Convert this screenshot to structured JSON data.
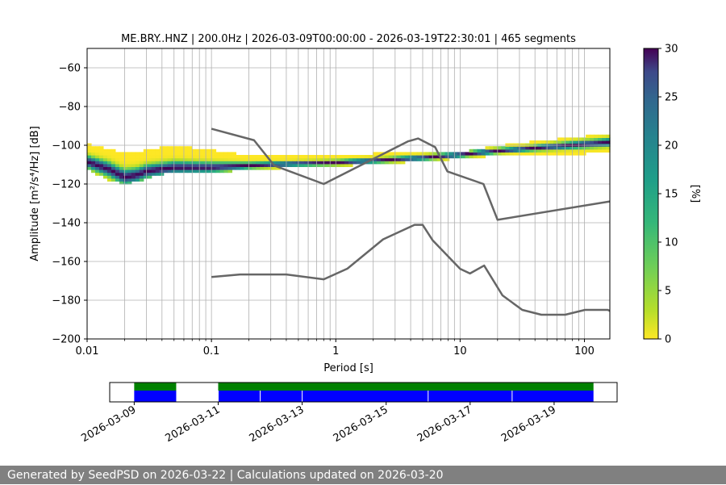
{
  "chart_data": {
    "type": "heatmap",
    "title": "ME.BRY..HNZ | 200.0Hz | 2026-03-09T00:00:00 - 2026-03-19T22:30:01 | 465 segments",
    "xlabel": "Period [s]",
    "ylabel": "Amplitude [m²/s⁴/Hz] [dB]",
    "x_scale": "log",
    "xlim": [
      0.01,
      160
    ],
    "ylim": [
      -200,
      -50
    ],
    "xticks": [
      0.01,
      0.1,
      1,
      10,
      100
    ],
    "xtick_labels": [
      "0.01",
      "0.1",
      "1",
      "10",
      "100"
    ],
    "yticks": [
      -200,
      -180,
      -160,
      -140,
      -120,
      -100,
      -80,
      -60
    ],
    "ytick_labels": [
      "−200",
      "−180",
      "−160",
      "−140",
      "−120",
      "−100",
      "−80",
      "−60"
    ],
    "grid": true,
    "colorbar": {
      "label": "[%]",
      "range": [
        0,
        30
      ],
      "ticks": [
        0,
        5,
        10,
        15,
        20,
        25,
        30
      ],
      "tick_labels": [
        "0",
        "5",
        "10",
        "15",
        "20",
        "25",
        "30"
      ],
      "colormap": "viridis_r"
    },
    "high_noise_model": {
      "name": "NHNM",
      "period": [
        0.1,
        0.22,
        0.32,
        0.8,
        3.8,
        4.6,
        6.3,
        7.9,
        15.4,
        20,
        160
      ],
      "db": [
        -91.5,
        -97.4,
        -110.5,
        -120,
        -98,
        -96.5,
        -101,
        -113.5,
        -120,
        -138.5,
        -129
      ]
    },
    "low_noise_model": {
      "name": "NLNM",
      "period": [
        0.1,
        0.17,
        0.4,
        0.8,
        1.24,
        2.4,
        4.3,
        5,
        6,
        10,
        12,
        15.6,
        21.9,
        31.6,
        45,
        70,
        101,
        154,
        160
      ],
      "db": [
        -168,
        -166.7,
        -166.7,
        -169.2,
        -163.7,
        -148.6,
        -141.1,
        -141.1,
        -149,
        -163.8,
        -166.2,
        -162.1,
        -177.5,
        -185,
        -187.5,
        -187.5,
        -185,
        -185,
        -185.5
      ]
    },
    "psd_mode": {
      "period": [
        0.01,
        0.015,
        0.02,
        0.025,
        0.03,
        0.05,
        0.1,
        0.2,
        0.5,
        1,
        2,
        5,
        10,
        20,
        50,
        100,
        160
      ],
      "db": [
        -109,
        -113,
        -117,
        -116,
        -114,
        -112,
        -112,
        -111,
        -110,
        -109.5,
        -108.5,
        -107,
        -105.5,
        -103.5,
        -101.5,
        -100,
        -99
      ]
    },
    "psd_spread": {
      "period": [
        0.01,
        0.015,
        0.02,
        0.025,
        0.03,
        0.05,
        0.1,
        0.2,
        0.5,
        1,
        2,
        5,
        10,
        20,
        50,
        100,
        160
      ],
      "upper_db": [
        -100,
        -103,
        -104,
        -104,
        -103,
        -101,
        -103,
        -106,
        -106,
        -105.5,
        -105,
        -105,
        -104.5,
        -101,
        -98,
        -96,
        -95
      ],
      "lower_db": [
        -112,
        -117,
        -119,
        -118,
        -116,
        -113,
        -113,
        -112,
        -110.5,
        -110,
        -109,
        -107.5,
        -106,
        -104.5,
        -104,
        -103.5,
        -103
      ]
    },
    "availability": {
      "xlim": [
        "2026-03-08T10:00",
        "2026-03-20T12:00"
      ],
      "xtick_labels": [
        "2026-03-09",
        "2026-03-11",
        "2026-03-13",
        "2026-03-15",
        "2026-03-17",
        "2026-03-19"
      ],
      "data_spans": [
        [
          "2026-03-09T00:00",
          "2026-03-10T00:00"
        ],
        [
          "2026-03-11T00:00",
          "2026-03-19T22:30"
        ]
      ],
      "psd_segments": [
        [
          "2026-03-09T00:00",
          "2026-03-10T00:00"
        ],
        [
          "2026-03-11T00:00",
          "2026-03-12T00:00"
        ],
        [
          "2026-03-12T00:00",
          "2026-03-13T00:00"
        ],
        [
          "2026-03-13T00:00",
          "2026-03-16T00:00"
        ],
        [
          "2026-03-16T00:00",
          "2026-03-18T00:00"
        ],
        [
          "2026-03-18T00:00",
          "2026-03-19T22:30"
        ]
      ],
      "data_color": "#008000",
      "segment_color": "#0000ff"
    }
  },
  "footer": {
    "text": "Generated by SeedPSD on 2026-03-22 | Calculations updated on 2026-03-20",
    "color": "#808080"
  }
}
